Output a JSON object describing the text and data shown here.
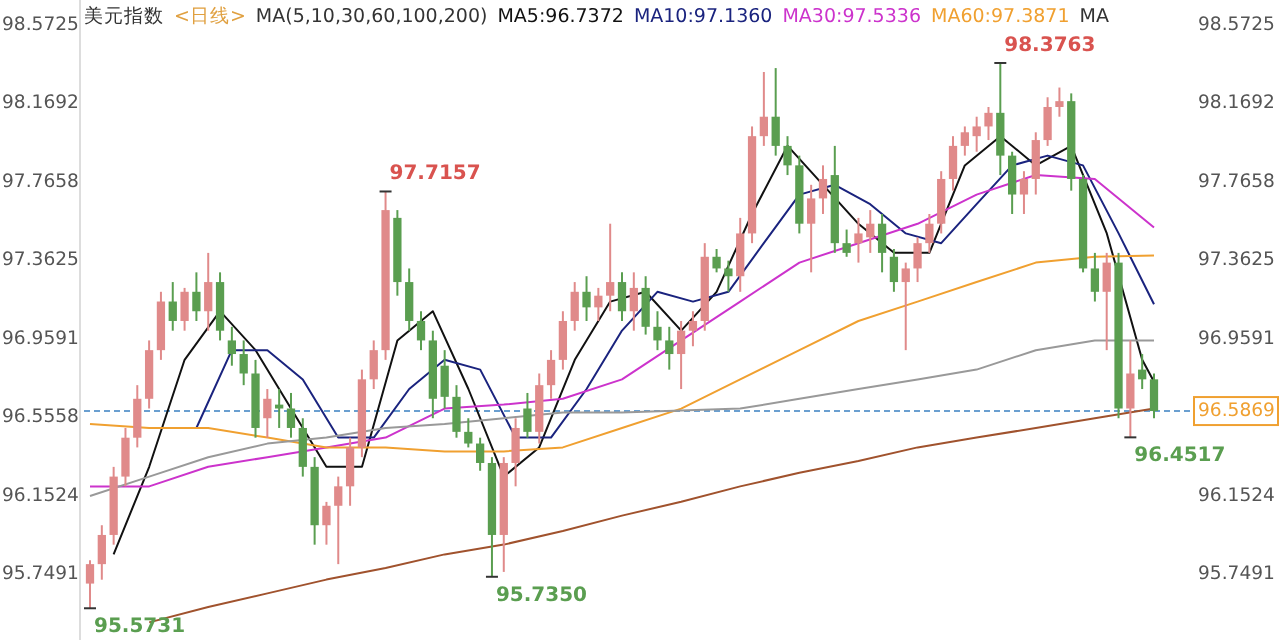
{
  "chart_data": {
    "type": "candlestick",
    "title": "美元指数",
    "subtitle": "<日线>",
    "annotations": [
      "MA(5,10,30,60,100,200)",
      "MA",
      "98.3763",
      "97.7157",
      "95.7350",
      "95.5731",
      "96.4517"
    ],
    "categories": [
      null,
      null,
      null,
      null,
      null,
      null,
      null,
      null,
      null,
      null,
      null,
      null,
      null,
      null,
      null,
      null,
      null,
      null,
      null,
      null,
      null,
      null,
      null,
      null,
      null,
      null,
      null,
      null,
      null,
      null,
      null,
      null,
      null,
      null,
      null,
      null,
      null,
      null,
      null,
      null,
      null,
      null,
      null,
      null,
      null,
      null,
      null,
      null,
      null,
      null,
      null,
      null,
      null,
      null,
      null,
      null,
      null,
      null,
      null,
      null,
      null,
      null,
      null,
      null,
      null,
      null,
      null,
      null,
      null,
      null,
      null,
      null,
      null,
      null,
      null,
      null,
      null,
      null,
      null,
      null,
      null,
      null,
      null,
      null,
      null,
      null,
      null,
      null,
      null,
      null,
      null
    ],
    "ohlc": [
      [
        95.7,
        95.82,
        95.5731,
        95.8
      ],
      [
        95.8,
        96.0,
        95.72,
        95.95
      ],
      [
        95.95,
        96.3,
        95.9,
        96.25
      ],
      [
        96.25,
        96.5,
        96.2,
        96.45
      ],
      [
        96.45,
        96.72,
        96.4,
        96.65
      ],
      [
        96.65,
        96.95,
        96.6,
        96.9
      ],
      [
        96.9,
        97.2,
        96.85,
        97.15
      ],
      [
        97.15,
        97.25,
        97.0,
        97.05
      ],
      [
        97.05,
        97.22,
        97.0,
        97.2
      ],
      [
        97.2,
        97.3,
        97.05,
        97.1
      ],
      [
        97.1,
        97.4,
        97.0,
        97.25
      ],
      [
        97.25,
        97.3,
        96.95,
        97.0
      ],
      [
        96.95,
        97.02,
        96.82,
        96.88
      ],
      [
        96.88,
        96.95,
        96.72,
        96.78
      ],
      [
        96.78,
        96.85,
        96.45,
        96.5
      ],
      [
        96.55,
        96.7,
        96.45,
        96.65
      ],
      [
        96.62,
        96.7,
        96.5,
        96.6
      ],
      [
        96.6,
        96.68,
        96.45,
        96.5
      ],
      [
        96.5,
        96.55,
        96.25,
        96.3
      ],
      [
        96.3,
        96.35,
        95.9,
        96.0
      ],
      [
        96.0,
        96.12,
        95.9,
        96.1
      ],
      [
        96.1,
        96.25,
        95.8,
        96.2
      ],
      [
        96.2,
        96.45,
        96.1,
        96.4
      ],
      [
        96.4,
        96.8,
        96.35,
        96.75
      ],
      [
        96.75,
        96.95,
        96.7,
        96.9
      ],
      [
        96.9,
        97.7157,
        96.85,
        97.62
      ],
      [
        97.58,
        97.62,
        97.18,
        97.25
      ],
      [
        97.25,
        97.32,
        97.0,
        97.05
      ],
      [
        97.05,
        97.1,
        96.9,
        96.95
      ],
      [
        96.95,
        97.0,
        96.55,
        96.65
      ],
      [
        96.82,
        96.9,
        96.6,
        96.66
      ],
      [
        96.66,
        96.72,
        96.45,
        96.48
      ],
      [
        96.48,
        96.55,
        96.4,
        96.42
      ],
      [
        96.42,
        96.45,
        96.28,
        96.32
      ],
      [
        96.32,
        96.35,
        95.735,
        95.95
      ],
      [
        95.95,
        96.35,
        95.76,
        96.32
      ],
      [
        96.32,
        96.55,
        96.2,
        96.5
      ],
      [
        96.6,
        96.68,
        96.45,
        96.48
      ],
      [
        96.48,
        96.78,
        96.42,
        96.72
      ],
      [
        96.72,
        96.9,
        96.65,
        96.85
      ],
      [
        96.85,
        97.1,
        96.8,
        97.05
      ],
      [
        97.05,
        97.25,
        97.0,
        97.2
      ],
      [
        97.2,
        97.28,
        97.05,
        97.12
      ],
      [
        97.12,
        97.22,
        97.05,
        97.18
      ],
      [
        97.18,
        97.55,
        97.1,
        97.25
      ],
      [
        97.25,
        97.3,
        97.05,
        97.1
      ],
      [
        97.1,
        97.3,
        97.0,
        97.22
      ],
      [
        97.22,
        97.28,
        96.98,
        97.02
      ],
      [
        97.02,
        97.1,
        96.9,
        96.95
      ],
      [
        96.95,
        97.02,
        96.8,
        96.88
      ],
      [
        96.88,
        97.05,
        96.7,
        97.0
      ],
      [
        97.0,
        97.1,
        96.92,
        97.05
      ],
      [
        97.05,
        97.45,
        97.0,
        97.38
      ],
      [
        97.38,
        97.42,
        97.3,
        97.32
      ],
      [
        97.32,
        97.36,
        97.2,
        97.28
      ],
      [
        97.28,
        97.58,
        97.2,
        97.5
      ],
      [
        97.5,
        98.05,
        97.45,
        98.0
      ],
      [
        98.0,
        98.33,
        97.95,
        98.1
      ],
      [
        98.1,
        98.35,
        97.9,
        97.95
      ],
      [
        97.95,
        98.0,
        97.8,
        97.85
      ],
      [
        97.85,
        97.9,
        97.5,
        97.55
      ],
      [
        97.55,
        97.75,
        97.3,
        97.68
      ],
      [
        97.68,
        97.85,
        97.6,
        97.78
      ],
      [
        97.8,
        97.95,
        97.4,
        97.45
      ],
      [
        97.45,
        97.52,
        97.38,
        97.4
      ],
      [
        97.45,
        97.58,
        97.35,
        97.5
      ],
      [
        97.48,
        97.62,
        97.4,
        97.55
      ],
      [
        97.55,
        97.6,
        97.3,
        97.4
      ],
      [
        97.38,
        97.42,
        97.2,
        97.25
      ],
      [
        97.25,
        97.35,
        96.9,
        97.32
      ],
      [
        97.32,
        97.48,
        97.25,
        97.45
      ],
      [
        97.45,
        97.6,
        97.4,
        97.55
      ],
      [
        97.55,
        97.82,
        97.5,
        97.78
      ],
      [
        97.78,
        98.0,
        97.72,
        97.95
      ],
      [
        97.95,
        98.05,
        97.9,
        98.02
      ],
      [
        98.0,
        98.1,
        97.92,
        98.05
      ],
      [
        98.05,
        98.15,
        97.98,
        98.12
      ],
      [
        98.12,
        98.3763,
        97.8,
        97.9
      ],
      [
        97.9,
        97.92,
        97.6,
        97.7
      ],
      [
        97.7,
        97.82,
        97.6,
        97.78
      ],
      [
        97.78,
        98.02,
        97.7,
        97.98
      ],
      [
        97.98,
        98.2,
        97.95,
        98.15
      ],
      [
        98.15,
        98.25,
        98.1,
        98.18
      ],
      [
        98.18,
        98.22,
        97.72,
        97.78
      ],
      [
        97.78,
        97.8,
        97.3,
        97.32
      ],
      [
        97.32,
        97.4,
        97.15,
        97.2
      ],
      [
        97.2,
        97.4,
        96.9,
        97.35
      ],
      [
        97.35,
        97.4,
        96.55,
        96.6
      ],
      [
        96.6,
        96.95,
        96.4517,
        96.78
      ],
      [
        96.8,
        96.88,
        96.7,
        96.75
      ],
      [
        96.75,
        96.78,
        96.55,
        96.5869
      ]
    ],
    "series": [
      {
        "type": "line",
        "name": "MA5:96.7372",
        "color": "#111111",
        "values": [
          null,
          null,
          95.85,
          null,
          null,
          96.3,
          null,
          null,
          96.85,
          null,
          null,
          97.1,
          null,
          null,
          96.9,
          null,
          null,
          96.6,
          null,
          null,
          96.3,
          null,
          null,
          96.3,
          null,
          null,
          96.95,
          null,
          null,
          97.1,
          null,
          null,
          96.7,
          null,
          null,
          96.25,
          null,
          null,
          96.4,
          null,
          null,
          96.85,
          null,
          null,
          97.15,
          null,
          null,
          97.2,
          null,
          null,
          97.0,
          null,
          null,
          97.2,
          null,
          null,
          97.6,
          null,
          null,
          97.95,
          null,
          null,
          97.75,
          null,
          null,
          97.55,
          null,
          null,
          97.4,
          null,
          null,
          97.4,
          null,
          null,
          97.85,
          null,
          null,
          98.0,
          null,
          null,
          97.85,
          null,
          null,
          97.95,
          null,
          null,
          97.5,
          null,
          null,
          96.85,
          96.7372
        ]
      },
      {
        "type": "line",
        "name": "MA10:97.1360",
        "color": "#1a237e",
        "values": [
          null,
          null,
          null,
          null,
          null,
          null,
          null,
          null,
          null,
          96.5,
          null,
          null,
          96.9,
          null,
          null,
          96.9,
          null,
          null,
          96.75,
          null,
          null,
          96.45,
          null,
          null,
          96.45,
          null,
          null,
          96.7,
          null,
          null,
          96.85,
          null,
          null,
          96.8,
          null,
          null,
          96.45,
          null,
          null,
          96.45,
          null,
          null,
          96.7,
          null,
          null,
          97.0,
          null,
          null,
          97.2,
          null,
          null,
          97.15,
          null,
          null,
          97.2,
          null,
          null,
          97.45,
          null,
          null,
          97.7,
          null,
          null,
          97.75,
          null,
          null,
          97.65,
          null,
          null,
          97.5,
          null,
          null,
          97.45,
          null,
          null,
          97.65,
          null,
          null,
          97.85,
          null,
          null,
          97.9,
          null,
          null,
          97.85,
          null,
          null,
          97.5,
          null,
          null,
          97.136
        ]
      },
      {
        "type": "line",
        "name": "MA30:97.5336",
        "color": "#cc33cc",
        "values": [
          96.2,
          null,
          null,
          null,
          null,
          96.2,
          null,
          null,
          null,
          null,
          96.3,
          null,
          null,
          null,
          null,
          96.35,
          null,
          null,
          null,
          null,
          96.4,
          null,
          null,
          null,
          null,
          96.45,
          null,
          null,
          null,
          null,
          96.6,
          null,
          null,
          null,
          null,
          96.62,
          null,
          null,
          null,
          null,
          96.65,
          null,
          null,
          null,
          null,
          96.75,
          null,
          null,
          null,
          null,
          96.95,
          null,
          null,
          null,
          null,
          97.15,
          null,
          null,
          null,
          null,
          97.35,
          null,
          null,
          null,
          null,
          97.45,
          null,
          null,
          null,
          null,
          97.55,
          null,
          null,
          null,
          null,
          97.7,
          null,
          null,
          null,
          null,
          97.8,
          null,
          null,
          null,
          null,
          97.78,
          null,
          null,
          null,
          null,
          97.53
        ]
      },
      {
        "type": "line",
        "name": "MA60:97.3871",
        "color": "#f0a030",
        "values": [
          96.52,
          null,
          null,
          null,
          null,
          96.5,
          null,
          null,
          null,
          null,
          96.5,
          null,
          null,
          null,
          null,
          96.45,
          null,
          null,
          null,
          null,
          96.4,
          null,
          null,
          null,
          null,
          96.4,
          null,
          null,
          null,
          null,
          96.38,
          null,
          null,
          null,
          null,
          96.38,
          null,
          null,
          null,
          null,
          96.4,
          null,
          null,
          null,
          null,
          96.5,
          null,
          null,
          null,
          null,
          96.6,
          null,
          null,
          null,
          null,
          96.75,
          null,
          null,
          null,
          null,
          96.9,
          null,
          null,
          null,
          null,
          97.05,
          null,
          null,
          null,
          null,
          97.15,
          null,
          null,
          null,
          null,
          97.25,
          null,
          null,
          null,
          null,
          97.35,
          null,
          null,
          null,
          null,
          97.38,
          null,
          null,
          null,
          null,
          97.387
        ]
      },
      {
        "type": "line",
        "color": "#999999",
        "values": [
          96.15,
          null,
          null,
          null,
          null,
          96.25,
          null,
          null,
          null,
          null,
          96.35,
          null,
          null,
          null,
          null,
          96.42,
          null,
          null,
          null,
          null,
          96.45,
          null,
          null,
          null,
          null,
          96.5,
          null,
          null,
          null,
          null,
          96.52,
          null,
          null,
          null,
          null,
          96.55,
          null,
          null,
          null,
          null,
          96.58,
          null,
          null,
          null,
          null,
          96.58,
          null,
          null,
          null,
          null,
          96.59,
          null,
          null,
          null,
          null,
          96.6,
          null,
          null,
          null,
          null,
          96.65,
          null,
          null,
          null,
          null,
          96.7,
          null,
          null,
          null,
          null,
          96.75,
          null,
          null,
          null,
          null,
          96.8,
          null,
          null,
          null,
          null,
          96.9,
          null,
          null,
          null,
          null,
          96.95,
          null,
          null,
          null,
          null,
          96.95
        ]
      },
      {
        "type": "line",
        "color": "#a0522d",
        "values": [
          null,
          null,
          null,
          null,
          null,
          95.5,
          null,
          null,
          null,
          null,
          95.58,
          null,
          null,
          null,
          null,
          95.65,
          null,
          null,
          null,
          null,
          95.72,
          null,
          null,
          null,
          null,
          95.78,
          null,
          null,
          null,
          null,
          95.85,
          null,
          null,
          null,
          null,
          95.9,
          null,
          null,
          null,
          null,
          95.97,
          null,
          null,
          null,
          null,
          96.05,
          null,
          null,
          null,
          null,
          96.12,
          null,
          null,
          null,
          null,
          96.2,
          null,
          null,
          null,
          null,
          96.27,
          null,
          null,
          null,
          null,
          96.33,
          null,
          null,
          null,
          null,
          96.4,
          null,
          null,
          null,
          null,
          96.45,
          null,
          null,
          null,
          null,
          96.5,
          null,
          null,
          null,
          null,
          96.55,
          null,
          null,
          null,
          null,
          96.6
        ]
      }
    ],
    "ylim": [
      95.41,
      98.7
    ],
    "yticks": [
      95.7491,
      96.1524,
      96.5558,
      96.9591,
      97.3625,
      97.7658,
      98.1692,
      98.5725
    ],
    "y2lim": [
      95.41,
      98.7
    ],
    "y2ticks": [
      95.7491,
      96.1524,
      96.9591,
      97.3625,
      97.7658,
      98.1692,
      98.5725
    ],
    "tick_labels": "y",
    "ref_lines": [
      {
        "axis": "y2",
        "value": 96.5869,
        "label": "96.5869",
        "color": "#6a9fd0",
        "line_style": "dashed"
      }
    ],
    "grid": false
  }
}
